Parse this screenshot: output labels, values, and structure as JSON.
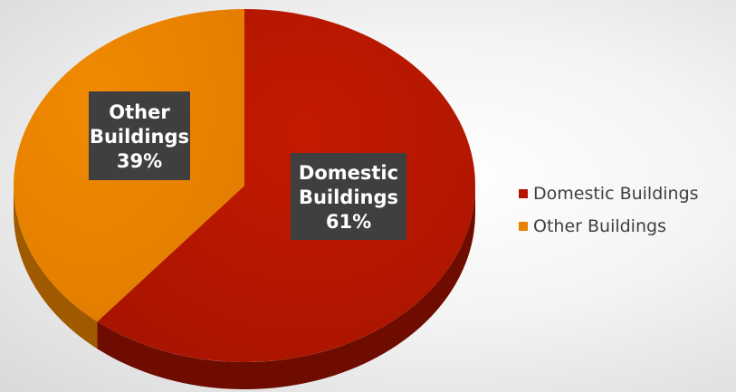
{
  "chart_data": {
    "type": "pie",
    "title": "",
    "categories": [
      "Domestic Buildings",
      "Other Buildings"
    ],
    "values": [
      61,
      39
    ],
    "data_labels": [
      [
        "Domestic",
        "Buildings",
        "61%"
      ],
      [
        "Other",
        "Buildings",
        "39%"
      ]
    ],
    "colors": [
      "#b31500",
      "#ea8200"
    ],
    "side_colors": [
      "#6f0c00",
      "#9f5a00"
    ],
    "legend": {
      "position": "right",
      "entries": [
        "Domestic Buildings",
        "Other Buildings"
      ]
    }
  }
}
